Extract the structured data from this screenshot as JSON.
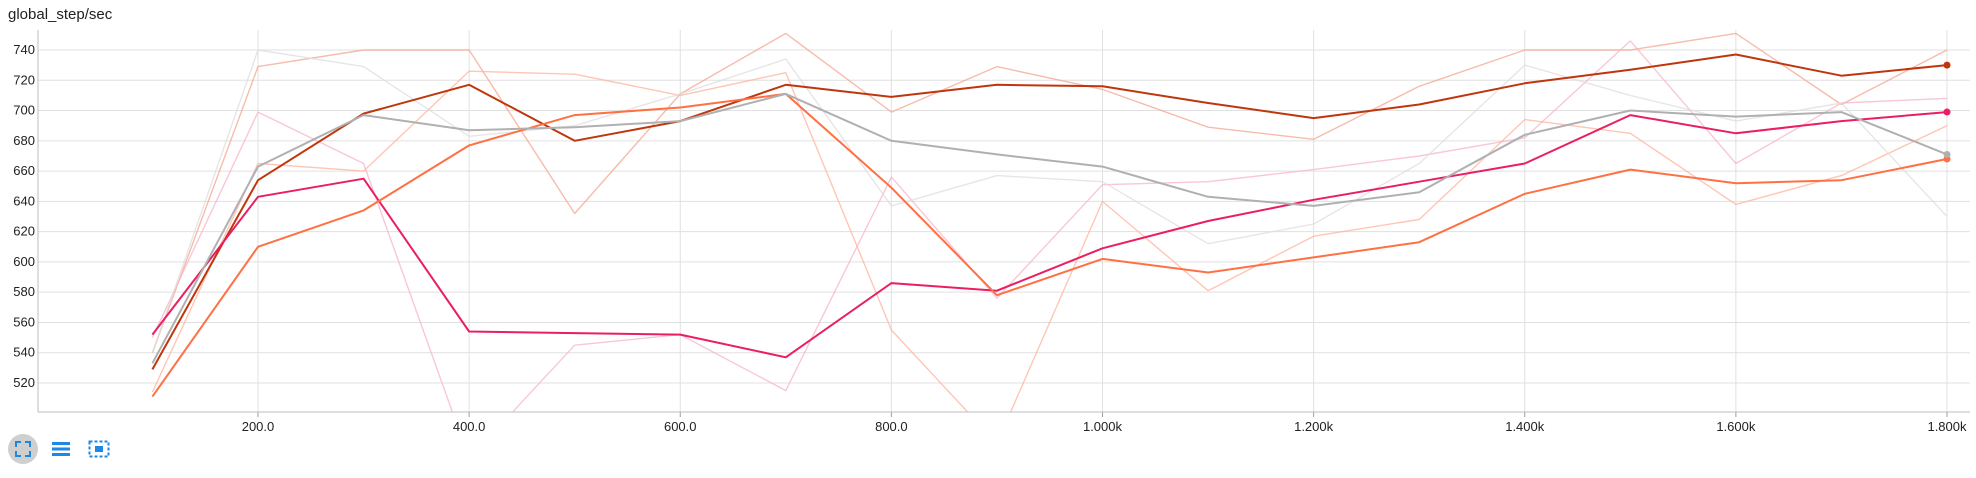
{
  "title": "global_step/sec",
  "icons": {
    "fullscreen": "fullscreen-icon",
    "data_table": "list-icon",
    "fit_domain": "fit-domain-icon"
  },
  "colors": {
    "smoothed": [
      "#bf360c",
      "#e91e63",
      "#ff7043",
      "#b0b0b0"
    ],
    "raw": [
      "#f4a58f",
      "#f7b4c9",
      "#ffb39e",
      "#dddddd"
    ],
    "grid": "#e0e0e0",
    "axis_label": "#212121",
    "icon": "#1e88e5"
  },
  "chart_data": {
    "type": "line",
    "title": "global_step/sec",
    "xlabel": "",
    "ylabel": "",
    "xlim": [
      0,
      1810
    ],
    "ylim": [
      504,
      758
    ],
    "x_ticks": [
      200,
      400,
      600,
      800,
      1000,
      1200,
      1400,
      1600,
      1800
    ],
    "x_tick_labels": [
      "200.0",
      "400.0",
      "600.0",
      "800.0",
      "1.000k",
      "1.200k",
      "1.400k",
      "1.600k",
      "1.800k"
    ],
    "y_ticks": [
      520,
      540,
      560,
      580,
      600,
      620,
      640,
      660,
      680,
      700,
      720,
      740
    ],
    "y_tick_labels": [
      "520",
      "540",
      "560",
      "580",
      "600",
      "620",
      "640",
      "660",
      "680",
      "700",
      "720",
      "740"
    ],
    "grid": true,
    "legend": "none",
    "x": [
      100,
      200,
      300,
      400,
      500,
      600,
      700,
      800,
      900,
      1000,
      1100,
      1200,
      1300,
      1400,
      1500,
      1600,
      1700,
      1800
    ],
    "series": [
      {
        "smoothed": [
          529,
          654,
          698,
          717,
          680,
          693,
          717,
          709,
          717,
          716,
          705,
          695,
          704,
          718,
          727,
          737,
          723,
          730
        ],
        "raw": [
          540,
          729,
          740,
          740,
          632,
          711,
          751,
          699,
          729,
          714,
          689,
          681,
          716,
          740,
          740,
          751,
          704,
          740
        ]
      },
      {
        "smoothed": [
          552,
          643,
          655,
          554,
          553,
          552,
          537,
          586,
          581,
          609,
          627,
          641,
          653,
          665,
          697,
          685,
          693,
          699
        ],
        "raw": [
          550,
          699,
          665,
          470,
          545,
          552,
          515,
          656,
          576,
          651,
          653,
          661,
          670,
          682,
          746,
          665,
          705,
          708
        ]
      },
      {
        "smoothed": [
          511,
          610,
          634,
          677,
          697,
          702,
          711,
          649,
          578,
          602,
          593,
          603,
          613,
          645,
          661,
          652,
          654,
          668
        ],
        "raw": [
          514,
          665,
          660,
          726,
          724,
          710,
          725,
          555,
          480,
          640,
          581,
          617,
          628,
          694,
          685,
          638,
          657,
          690
        ]
      },
      {
        "smoothed": [
          533,
          663,
          697,
          687,
          689,
          693,
          711,
          680,
          671,
          663,
          643,
          637,
          646,
          684,
          700,
          696,
          699,
          671
        ],
        "raw": [
          540,
          740,
          729,
          683,
          690,
          711,
          734,
          637,
          657,
          653,
          612,
          625,
          665,
          730,
          710,
          693,
          705,
          630
        ]
      }
    ]
  }
}
